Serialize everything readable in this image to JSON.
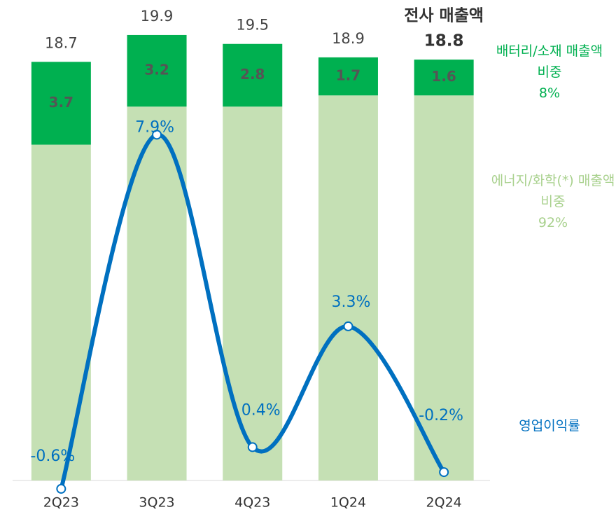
{
  "chart_data": {
    "type": "stacked_bar_line",
    "title": "전사 매출액",
    "categories": [
      "2Q23",
      "3Q23",
      "4Q23",
      "1Q24",
      "2Q24"
    ],
    "totals": [
      18.7,
      19.9,
      19.5,
      18.9,
      18.8
    ],
    "ylim": [
      0,
      21.4
    ],
    "y2lim": [
      -0.4,
      11.1
    ],
    "series": [
      {
        "name": "에너지/화학(*) 매출액 비중",
        "share_label": "92%",
        "color": "#c5e0b4",
        "type": "bar",
        "values": [
          15.0,
          16.7,
          16.7,
          17.2,
          17.2
        ]
      },
      {
        "name": "배터리/소재 매출액 비중",
        "share_label": "8%",
        "color": "#00b050",
        "type": "bar",
        "values": [
          3.7,
          3.2,
          2.8,
          1.7,
          1.6
        ]
      },
      {
        "name": "영업이익률",
        "color": "#0070c0",
        "type": "line",
        "axis": "y2",
        "values": [
          -0.6,
          7.9,
          0.4,
          3.3,
          -0.2
        ],
        "value_labels": [
          "-0.6%",
          "7.9%",
          "0.4%",
          "3.3%",
          "-0.2%"
        ]
      }
    ]
  }
}
